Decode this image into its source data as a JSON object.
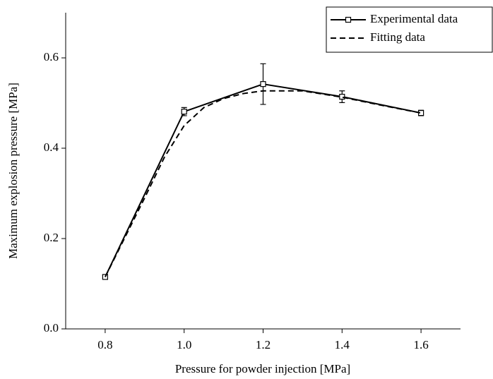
{
  "chart_data": {
    "type": "line",
    "xlabel": "Pressure for powder injection [MPa]",
    "ylabel": "Maximum explosion pressure [MPa]",
    "xlim": [
      0.7,
      1.7
    ],
    "xticks": [
      {
        "value": 0.8,
        "label": "0.8"
      },
      {
        "value": 1.0,
        "label": "1.0"
      },
      {
        "value": 1.2,
        "label": "1.2"
      },
      {
        "value": 1.4,
        "label": "1.4"
      },
      {
        "value": 1.6,
        "label": "1.6"
      }
    ],
    "ylim": [
      0,
      0.7
    ],
    "yticks": [
      {
        "value": 0,
        "label": "0.0"
      },
      {
        "value": 0.2,
        "label": "0.2"
      },
      {
        "value": 0.4,
        "label": "0.4"
      },
      {
        "value": 0.6,
        "label": "0.6"
      }
    ],
    "legend": "upper right",
    "series": [
      {
        "name": "Experimental data",
        "color": "#000000",
        "dash": false,
        "marker": "square",
        "x": [
          0.8,
          1.0,
          1.2,
          1.4,
          1.6
        ],
        "values": [
          0.115,
          0.481,
          0.542,
          0.514,
          0.478
        ],
        "errors": [
          0.003,
          0.009,
          0.045,
          0.013,
          0.006
        ]
      },
      {
        "name": "Fitting data",
        "color": "#000000",
        "dash": true,
        "x": [
          0.8,
          0.9,
          0.95,
          1.0,
          1.05,
          1.1,
          1.15,
          1.2,
          1.3,
          1.4,
          1.5,
          1.6
        ],
        "values": [
          0.115,
          0.29,
          0.38,
          0.45,
          0.49,
          0.51,
          0.521,
          0.527,
          0.527,
          0.513,
          0.495,
          0.478
        ]
      }
    ]
  }
}
